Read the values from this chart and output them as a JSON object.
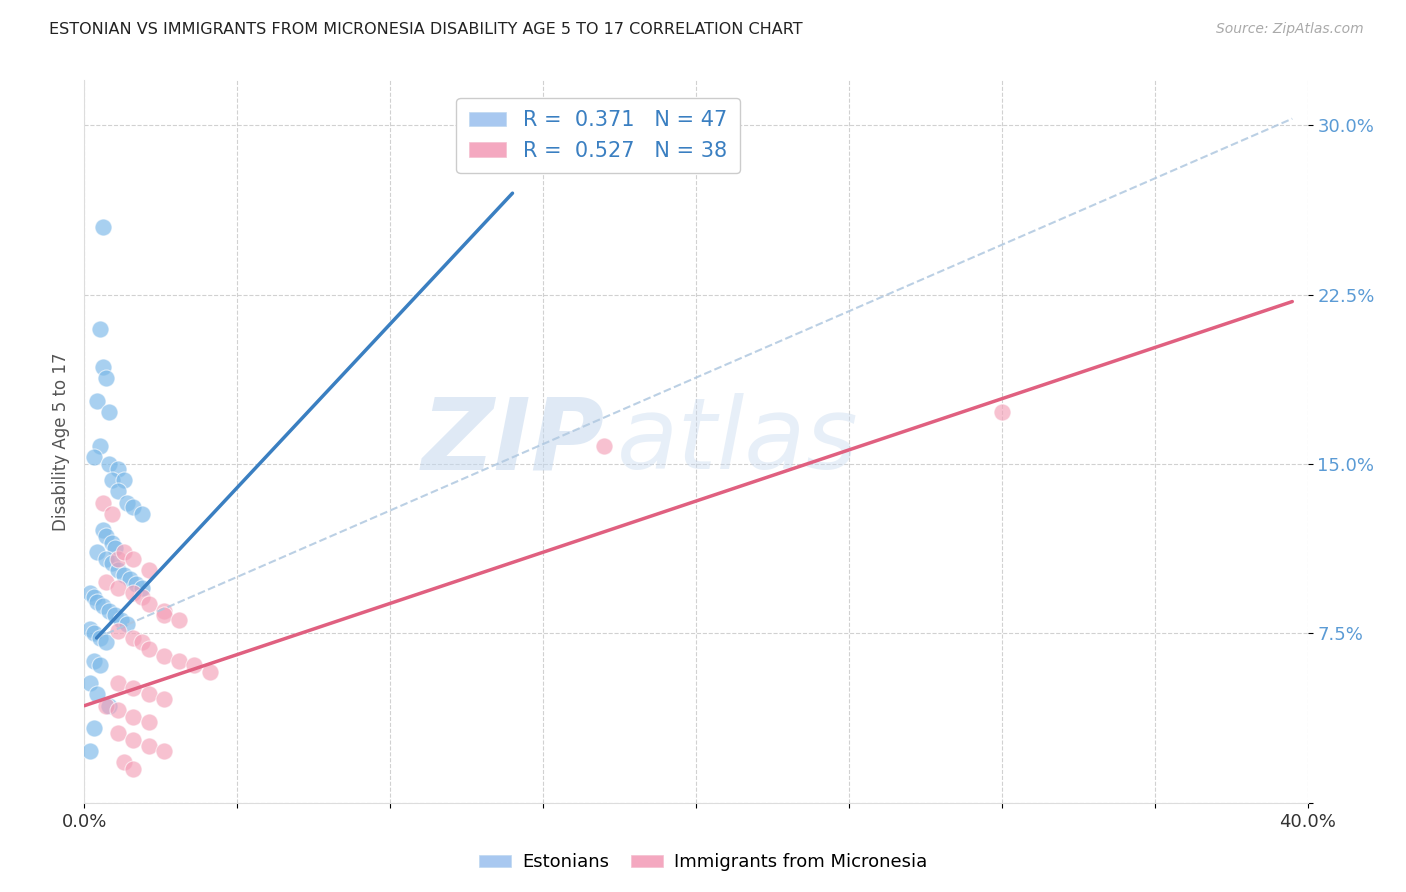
{
  "title": "ESTONIAN VS IMMIGRANTS FROM MICRONESIA DISABILITY AGE 5 TO 17 CORRELATION CHART",
  "source": "Source: ZipAtlas.com",
  "ylabel": "Disability Age 5 to 17",
  "xlabel": "",
  "xlim": [
    0.0,
    0.4
  ],
  "ylim": [
    0.0,
    0.32
  ],
  "yticks": [
    0.0,
    0.075,
    0.15,
    0.225,
    0.3
  ],
  "ytick_labels": [
    "",
    "7.5%",
    "15.0%",
    "22.5%",
    "30.0%"
  ],
  "xticks": [
    0.0,
    0.05,
    0.1,
    0.15,
    0.2,
    0.25,
    0.3,
    0.35,
    0.4
  ],
  "xtick_labels": [
    "0.0%",
    "",
    "",
    "",
    "",
    "",
    "",
    "",
    "40.0%"
  ],
  "legend_r_values": [
    "0.371",
    "0.527"
  ],
  "legend_n_values": [
    "47",
    "38"
  ],
  "watermark_zip": "ZIP",
  "watermark_atlas": "atlas",
  "blue_color": "#7ab8e8",
  "pink_color": "#f4a0b8",
  "blue_line_color": "#3a7fc1",
  "pink_line_color": "#e06080",
  "blue_scatter": [
    [
      0.006,
      0.255
    ],
    [
      0.005,
      0.21
    ],
    [
      0.006,
      0.193
    ],
    [
      0.007,
      0.188
    ],
    [
      0.004,
      0.178
    ],
    [
      0.008,
      0.173
    ],
    [
      0.005,
      0.158
    ],
    [
      0.003,
      0.153
    ],
    [
      0.008,
      0.15
    ],
    [
      0.011,
      0.148
    ],
    [
      0.009,
      0.143
    ],
    [
      0.013,
      0.143
    ],
    [
      0.011,
      0.138
    ],
    [
      0.014,
      0.133
    ],
    [
      0.016,
      0.131
    ],
    [
      0.019,
      0.128
    ],
    [
      0.006,
      0.121
    ],
    [
      0.007,
      0.118
    ],
    [
      0.009,
      0.115
    ],
    [
      0.01,
      0.113
    ],
    [
      0.004,
      0.111
    ],
    [
      0.007,
      0.108
    ],
    [
      0.009,
      0.106
    ],
    [
      0.011,
      0.103
    ],
    [
      0.013,
      0.101
    ],
    [
      0.015,
      0.099
    ],
    [
      0.017,
      0.097
    ],
    [
      0.019,
      0.095
    ],
    [
      0.002,
      0.093
    ],
    [
      0.003,
      0.091
    ],
    [
      0.004,
      0.089
    ],
    [
      0.006,
      0.087
    ],
    [
      0.008,
      0.085
    ],
    [
      0.01,
      0.083
    ],
    [
      0.012,
      0.081
    ],
    [
      0.014,
      0.079
    ],
    [
      0.002,
      0.077
    ],
    [
      0.003,
      0.075
    ],
    [
      0.005,
      0.073
    ],
    [
      0.007,
      0.071
    ],
    [
      0.003,
      0.063
    ],
    [
      0.005,
      0.061
    ],
    [
      0.002,
      0.053
    ],
    [
      0.004,
      0.048
    ],
    [
      0.008,
      0.043
    ],
    [
      0.003,
      0.033
    ],
    [
      0.002,
      0.023
    ]
  ],
  "pink_scatter": [
    [
      0.006,
      0.133
    ],
    [
      0.009,
      0.128
    ],
    [
      0.011,
      0.108
    ],
    [
      0.013,
      0.111
    ],
    [
      0.016,
      0.108
    ],
    [
      0.021,
      0.103
    ],
    [
      0.007,
      0.098
    ],
    [
      0.011,
      0.095
    ],
    [
      0.016,
      0.093
    ],
    [
      0.019,
      0.091
    ],
    [
      0.021,
      0.088
    ],
    [
      0.026,
      0.085
    ],
    [
      0.026,
      0.083
    ],
    [
      0.031,
      0.081
    ],
    [
      0.011,
      0.076
    ],
    [
      0.016,
      0.073
    ],
    [
      0.019,
      0.071
    ],
    [
      0.021,
      0.068
    ],
    [
      0.026,
      0.065
    ],
    [
      0.031,
      0.063
    ],
    [
      0.036,
      0.061
    ],
    [
      0.041,
      0.058
    ],
    [
      0.011,
      0.053
    ],
    [
      0.016,
      0.051
    ],
    [
      0.021,
      0.048
    ],
    [
      0.026,
      0.046
    ],
    [
      0.007,
      0.043
    ],
    [
      0.011,
      0.041
    ],
    [
      0.016,
      0.038
    ],
    [
      0.021,
      0.036
    ],
    [
      0.011,
      0.031
    ],
    [
      0.016,
      0.028
    ],
    [
      0.021,
      0.025
    ],
    [
      0.026,
      0.023
    ],
    [
      0.013,
      0.018
    ],
    [
      0.016,
      0.015
    ],
    [
      0.3,
      0.173
    ],
    [
      0.17,
      0.158
    ]
  ],
  "blue_solid_line_x": [
    0.004,
    0.14
  ],
  "blue_solid_line_y": [
    0.073,
    0.27
  ],
  "blue_dash_line_x": [
    0.004,
    0.395
  ],
  "blue_dash_line_y": [
    0.073,
    0.303
  ],
  "pink_line_x": [
    0.0,
    0.395
  ],
  "pink_line_y": [
    0.043,
    0.222
  ],
  "background_color": "#ffffff",
  "grid_color": "#cccccc",
  "tick_color": "#5b9bd5"
}
